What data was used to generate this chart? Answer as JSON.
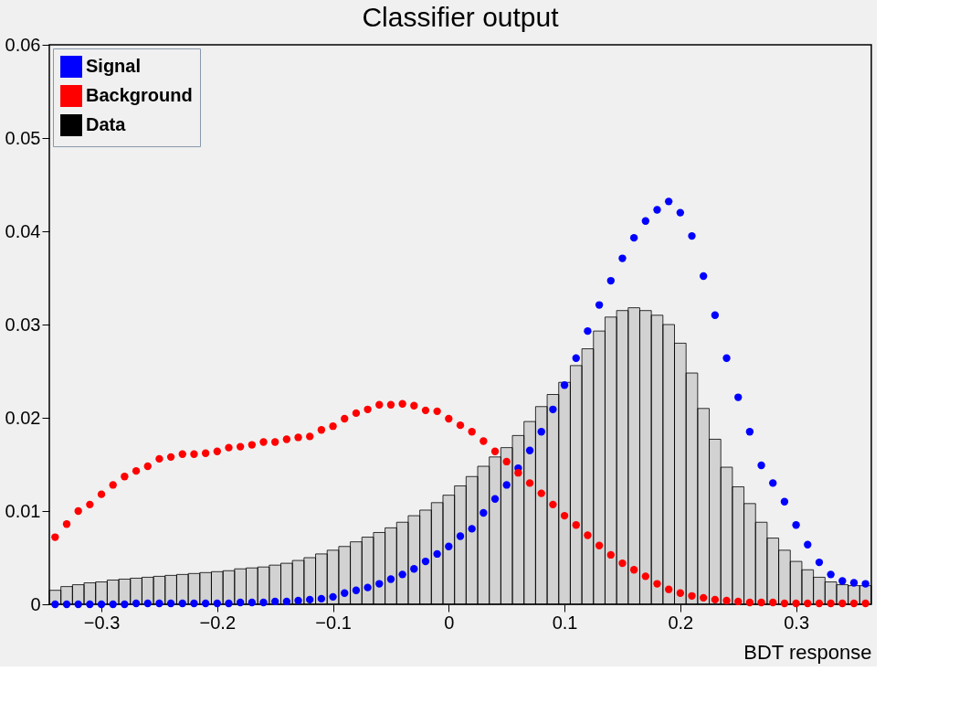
{
  "chart_data": {
    "type": "scatter",
    "title": "Classifier output",
    "xlabel": "BDT response",
    "xlim": [
      -0.345,
      0.365
    ],
    "ylim": [
      0,
      0.06
    ],
    "xticks": [
      {
        "value": -0.3,
        "label": "−0.3"
      },
      {
        "value": -0.2,
        "label": "−0.2"
      },
      {
        "value": -0.1,
        "label": "−0.1"
      },
      0,
      0.1,
      0.2,
      0.3
    ],
    "yticks": [
      0,
      0.01,
      0.02,
      0.03,
      0.04,
      0.05,
      0.06
    ],
    "grid": false,
    "legend": "top left",
    "marker": "circle",
    "series": [
      {
        "name": "Signal",
        "color": "#0000ff",
        "x": [
          -0.34,
          -0.33,
          -0.32,
          -0.31,
          -0.3,
          -0.29,
          -0.28,
          -0.27,
          -0.26,
          -0.25,
          -0.24,
          -0.23,
          -0.22,
          -0.21,
          -0.2,
          -0.19,
          -0.18,
          -0.17,
          -0.16,
          -0.15,
          -0.14,
          -0.13,
          -0.12,
          -0.11,
          -0.1,
          -0.09,
          -0.08,
          -0.07,
          -0.06,
          -0.05,
          -0.04,
          -0.03,
          -0.02,
          -0.01,
          0,
          0.01,
          0.02,
          0.03,
          0.04,
          0.05,
          0.06,
          0.07,
          0.08,
          0.09,
          0.1,
          0.11,
          0.12,
          0.13,
          0.14,
          0.15,
          0.16,
          0.17,
          0.18,
          0.19,
          0.2,
          0.21,
          0.22,
          0.23,
          0.24,
          0.25,
          0.26,
          0.27,
          0.28,
          0.29,
          0.3,
          0.31,
          0.32,
          0.33,
          0.34,
          0.35,
          0.36
        ],
        "values": [
          0,
          0,
          0,
          0,
          0,
          0,
          0,
          0.0001,
          0.0001,
          0.0001,
          0.0001,
          0.0001,
          0.0001,
          0.0001,
          0.0001,
          0.0001,
          0.0002,
          0.0002,
          0.0002,
          0.0003,
          0.0003,
          0.0004,
          0.0005,
          0.0006,
          0.0008,
          0.0012,
          0.0015,
          0.0018,
          0.0022,
          0.0027,
          0.0032,
          0.0038,
          0.0046,
          0.0054,
          0.0062,
          0.0073,
          0.0081,
          0.0098,
          0.0113,
          0.0128,
          0.0146,
          0.0165,
          0.0185,
          0.0209,
          0.0235,
          0.0264,
          0.0293,
          0.0321,
          0.0347,
          0.0371,
          0.0393,
          0.0411,
          0.0423,
          0.0432,
          0.042,
          0.0395,
          0.0352,
          0.031,
          0.0264,
          0.0222,
          0.0185,
          0.0149,
          0.013,
          0.011,
          0.0085,
          0.0064,
          0.0045,
          0.0032,
          0.0025,
          0.0023,
          0.0022
        ]
      },
      {
        "name": "Background",
        "color": "#ff0000",
        "x": [
          -0.34,
          -0.33,
          -0.32,
          -0.31,
          -0.3,
          -0.29,
          -0.28,
          -0.27,
          -0.26,
          -0.25,
          -0.24,
          -0.23,
          -0.22,
          -0.21,
          -0.2,
          -0.19,
          -0.18,
          -0.17,
          -0.16,
          -0.15,
          -0.14,
          -0.13,
          -0.12,
          -0.11,
          -0.1,
          -0.09,
          -0.08,
          -0.07,
          -0.06,
          -0.05,
          -0.04,
          -0.03,
          -0.02,
          -0.01,
          0,
          0.01,
          0.02,
          0.03,
          0.04,
          0.05,
          0.06,
          0.07,
          0.08,
          0.09,
          0.1,
          0.11,
          0.12,
          0.13,
          0.14,
          0.15,
          0.16,
          0.17,
          0.18,
          0.19,
          0.2,
          0.21,
          0.22,
          0.23,
          0.24,
          0.25,
          0.26,
          0.27,
          0.28,
          0.29,
          0.3,
          0.31,
          0.32,
          0.33,
          0.34,
          0.35,
          0.36
        ],
        "values": [
          0.0072,
          0.0086,
          0.01,
          0.0107,
          0.0118,
          0.0128,
          0.0137,
          0.0143,
          0.0148,
          0.0156,
          0.0158,
          0.0161,
          0.0161,
          0.0162,
          0.0164,
          0.0168,
          0.0169,
          0.0171,
          0.0174,
          0.0174,
          0.0177,
          0.0179,
          0.018,
          0.0187,
          0.0191,
          0.0199,
          0.0205,
          0.0209,
          0.0214,
          0.0214,
          0.0215,
          0.0213,
          0.0208,
          0.0207,
          0.0199,
          0.0192,
          0.0185,
          0.0175,
          0.0164,
          0.0153,
          0.0141,
          0.013,
          0.0119,
          0.0107,
          0.0095,
          0.0085,
          0.0074,
          0.0063,
          0.0053,
          0.0044,
          0.0037,
          0.003,
          0.0022,
          0.0016,
          0.0012,
          0.0009,
          0.0007,
          0.0005,
          0.0004,
          0.0003,
          0.0002,
          0.0002,
          0.0002,
          0.0001,
          0.0001,
          0.0001,
          0.0001,
          0.0001,
          0.0001,
          0.0001,
          0.0001
        ]
      },
      {
        "name": "Data",
        "type": "histogram",
        "color": "#000000",
        "bins": [
          -0.345,
          -0.335,
          -0.325,
          -0.315,
          -0.305,
          -0.295,
          -0.285,
          -0.275,
          -0.265,
          -0.255,
          -0.245,
          -0.235,
          -0.225,
          -0.215,
          -0.205,
          -0.195,
          -0.185,
          -0.175,
          -0.165,
          -0.155,
          -0.145,
          -0.135,
          -0.125,
          -0.115,
          -0.105,
          -0.095,
          -0.085,
          -0.075,
          -0.065,
          -0.055,
          -0.045,
          -0.035,
          -0.025,
          -0.015,
          -0.005,
          0.005,
          0.015,
          0.025,
          0.035,
          0.045,
          0.055,
          0.065,
          0.075,
          0.085,
          0.095,
          0.105,
          0.115,
          0.125,
          0.135,
          0.145,
          0.155,
          0.165,
          0.175,
          0.185,
          0.195,
          0.205,
          0.215,
          0.225,
          0.235,
          0.245,
          0.255,
          0.265,
          0.275,
          0.285,
          0.295,
          0.305,
          0.315,
          0.325,
          0.335,
          0.345,
          0.355,
          0.365
        ],
        "values": [
          0.0015,
          0.0019,
          0.0021,
          0.0023,
          0.0024,
          0.0026,
          0.0027,
          0.0028,
          0.0029,
          0.003,
          0.0031,
          0.0032,
          0.0033,
          0.0034,
          0.0035,
          0.0036,
          0.0038,
          0.0039,
          0.004,
          0.0042,
          0.0044,
          0.0047,
          0.005,
          0.0054,
          0.0058,
          0.0062,
          0.0067,
          0.0072,
          0.0077,
          0.0082,
          0.0088,
          0.0095,
          0.0101,
          0.0109,
          0.0117,
          0.0127,
          0.0137,
          0.0148,
          0.0158,
          0.0168,
          0.0181,
          0.0196,
          0.0212,
          0.0225,
          0.0238,
          0.0256,
          0.0274,
          0.0293,
          0.0308,
          0.0315,
          0.0318,
          0.0315,
          0.031,
          0.03,
          0.028,
          0.0248,
          0.021,
          0.0177,
          0.0147,
          0.0126,
          0.0108,
          0.0088,
          0.0071,
          0.0058,
          0.0046,
          0.0037,
          0.0029,
          0.0024,
          0.0021,
          0.002,
          0.002
        ]
      }
    ]
  }
}
